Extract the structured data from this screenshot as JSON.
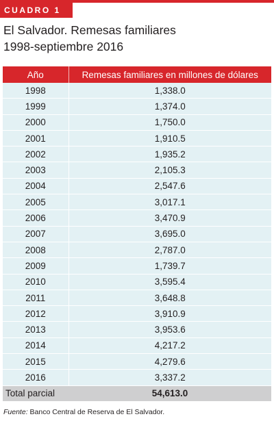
{
  "badge": "CUADRO 1",
  "title": {
    "line1": "El Salvador. Remesas familiares",
    "line2": "1998-septiembre 2016"
  },
  "table": {
    "headers": [
      "Año",
      "Remesas familiares en millones de dólares"
    ],
    "rows": [
      [
        "1998",
        "1,338.0"
      ],
      [
        "1999",
        "1,374.0"
      ],
      [
        "2000",
        "1,750.0"
      ],
      [
        "2001",
        "1,910.5"
      ],
      [
        "2002",
        "1,935.2"
      ],
      [
        "2003",
        "2,105.3"
      ],
      [
        "2004",
        "2,547.6"
      ],
      [
        "2005",
        "3,017.1"
      ],
      [
        "2006",
        "3,470.9"
      ],
      [
        "2007",
        "3,695.0"
      ],
      [
        "2008",
        "2,787.0"
      ],
      [
        "2009",
        "1,739.7"
      ],
      [
        "2010",
        "3,595.4"
      ],
      [
        "2011",
        "3,648.8"
      ],
      [
        "2012",
        "3,910.9"
      ],
      [
        "2013",
        "3,953.6"
      ],
      [
        "2014",
        "4,217.2"
      ],
      [
        "2015",
        "4,279.6"
      ],
      [
        "2016",
        "3,337.2"
      ]
    ],
    "total_label": "Total parcial",
    "total_value": "54,613.0"
  },
  "source": {
    "label": "Fuente:",
    "text": "Banco Central de Reserva de El Salvador."
  },
  "colors": {
    "accent": "#d7262b",
    "row_bg": "#e3f1f4",
    "total_bg": "#cfcfd0"
  }
}
